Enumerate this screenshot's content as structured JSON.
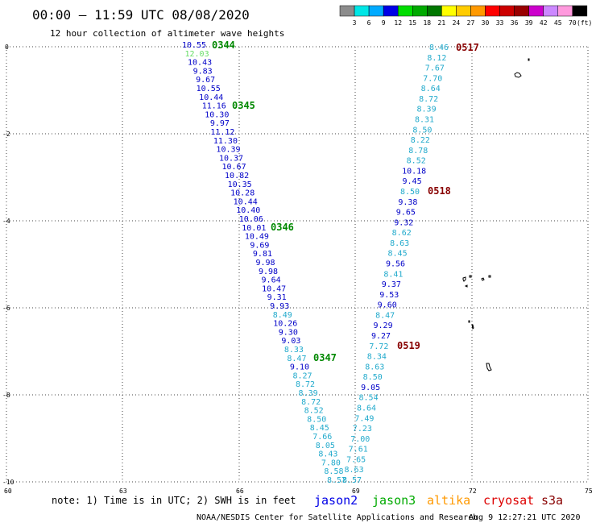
{
  "header": {
    "title": "00:00 – 11:59 UTC 08/08/2020",
    "subtitle": "12 hour collection of altimeter wave heights"
  },
  "legend": {
    "unit": "(ft)",
    "bins": [
      {
        "label": "3",
        "color": "#8c8c8c"
      },
      {
        "label": "6",
        "color": "#00e6e6"
      },
      {
        "label": "9",
        "color": "#00aaff"
      },
      {
        "label": "12",
        "color": "#0000e6"
      },
      {
        "label": "15",
        "color": "#00dd00"
      },
      {
        "label": "18",
        "color": "#00aa00"
      },
      {
        "label": "21",
        "color": "#007700"
      },
      {
        "label": "24",
        "color": "#ffff00"
      },
      {
        "label": "27",
        "color": "#ffcc00"
      },
      {
        "label": "30",
        "color": "#ff9900"
      },
      {
        "label": "33",
        "color": "#ff0000"
      },
      {
        "label": "36",
        "color": "#cc0000"
      },
      {
        "label": "39",
        "color": "#990000"
      },
      {
        "label": "42",
        "color": "#cc00cc"
      },
      {
        "label": "45",
        "color": "#cc88ff"
      },
      {
        "label": "70",
        "color": "#ff99dd"
      },
      {
        "label": "",
        "color": "#000000"
      }
    ]
  },
  "axes": {
    "x_ticks": [
      "60",
      "63",
      "66",
      "69",
      "72",
      "75"
    ],
    "y_ticks": [
      "0",
      "-2",
      "-4",
      "-6",
      "-8",
      "-10"
    ]
  },
  "track_west": {
    "color_dark": "#0000c8",
    "color_light": "#22aacc",
    "color_green": "#66dd66",
    "values": [
      "10.55",
      "12.03",
      "10.43",
      "9.83",
      "9.67",
      "10.55",
      "10.44",
      "11.16",
      "10.30",
      "9.97",
      "11.12",
      "11.30",
      "10.39",
      "10.37",
      "10.67",
      "10.82",
      "10.35",
      "10.28",
      "10.44",
      "10.40",
      "10.06",
      "10.01",
      "10.49",
      "9.69",
      "9.81",
      "9.98",
      "9.98",
      "9.64",
      "10.47",
      "9.31",
      "9.93",
      "8.49",
      "10.26",
      "9.30",
      "9.03",
      "8.33",
      "8.47",
      "9.10",
      "8.27",
      "8.72",
      "8.39",
      "8.72",
      "8.52",
      "8.50",
      "8.45",
      "7.66",
      "8.05",
      "8.43",
      "7.80",
      "8.58",
      "8.57"
    ],
    "tone": [
      "d",
      "g",
      "d",
      "d",
      "d",
      "d",
      "d",
      "d",
      "d",
      "d",
      "d",
      "d",
      "d",
      "d",
      "d",
      "d",
      "d",
      "d",
      "d",
      "d",
      "d",
      "d",
      "d",
      "d",
      "d",
      "d",
      "d",
      "d",
      "d",
      "d",
      "d",
      "l",
      "d",
      "d",
      "d",
      "l",
      "l",
      "d",
      "l",
      "l",
      "l",
      "l",
      "l",
      "l",
      "l",
      "l",
      "l",
      "l",
      "l",
      "l",
      "l"
    ]
  },
  "track_east": {
    "values": [
      "8.46",
      "8.12",
      "7.67",
      "7.70",
      "8.64",
      "8.72",
      "8.39",
      "8.31",
      "8.50",
      "8.22",
      "8.78",
      "8.52",
      "10.18",
      "9.45",
      "8.50",
      "9.38",
      "9.65",
      "9.32",
      "8.62",
      "8.63",
      "8.45",
      "9.56",
      "8.41",
      "9.37",
      "9.53",
      "9.60",
      "8.47",
      "9.29",
      "9.27",
      "7.72",
      "8.34",
      "8.63",
      "8.50",
      "9.05",
      "8.54",
      "8.64",
      "7.49",
      "7.23",
      "7.00",
      "7.61",
      "7.65",
      "8.63",
      "8.57"
    ],
    "tone": [
      "l",
      "l",
      "l",
      "l",
      "l",
      "l",
      "l",
      "l",
      "l",
      "l",
      "l",
      "l",
      "d",
      "d",
      "l",
      "d",
      "d",
      "d",
      "l",
      "l",
      "l",
      "d",
      "l",
      "d",
      "d",
      "d",
      "l",
      "d",
      "d",
      "l",
      "l",
      "l",
      "l",
      "d",
      "l",
      "l",
      "l",
      "l",
      "l",
      "l",
      "l",
      "l",
      "l"
    ]
  },
  "pass_labels": [
    {
      "text": "0344",
      "color": "#008800"
    },
    {
      "text": "0345",
      "color": "#008800"
    },
    {
      "text": "0346",
      "color": "#008800"
    },
    {
      "text": "0347",
      "color": "#008800"
    },
    {
      "text": "0517",
      "color": "#880000"
    },
    {
      "text": "0518",
      "color": "#880000"
    },
    {
      "text": "0519",
      "color": "#880000"
    }
  ],
  "footer": {
    "note": "note:  1) Time is in UTC; 2) SWH is in feet",
    "satellites": [
      {
        "name": "jason2",
        "color": "#0000e6"
      },
      {
        "name": "jason3",
        "color": "#00aa00"
      },
      {
        "name": "altika",
        "color": "#ff9900"
      },
      {
        "name": "cryosat",
        "color": "#dd0000"
      },
      {
        "name": "s3a",
        "color": "#880000"
      }
    ],
    "credit": "NOAA/NESDIS Center for Satellite Applications and Research",
    "timestamp": "Aug  9 12:27:21 UTC 2020"
  }
}
